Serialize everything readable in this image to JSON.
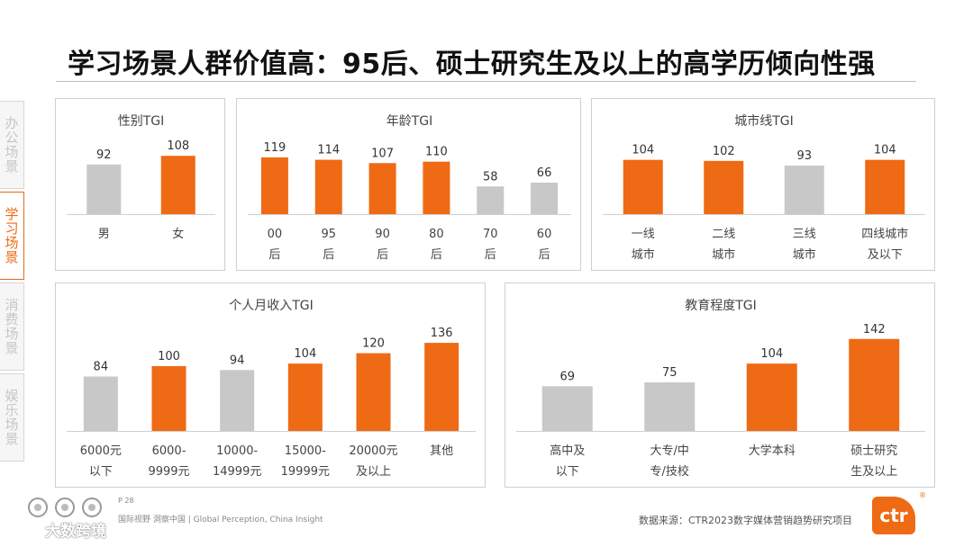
{
  "title": "学习场景人群价值高：95后、硕士研究生及以上的高学历倾向性强",
  "sidebar": [
    {
      "label": "办公场景",
      "active": false
    },
    {
      "label": "学习场景",
      "active": true
    },
    {
      "label": "消费场景",
      "active": false
    },
    {
      "label": "娱乐场景",
      "active": false
    }
  ],
  "colors": {
    "highlight": "#ef6a14",
    "base": "#c8c8c8"
  },
  "chart_data": [
    {
      "id": "gender",
      "type": "bar",
      "title": "性别TGI",
      "categories": [
        [
          "男"
        ],
        [
          "女"
        ]
      ],
      "values": [
        92,
        108
      ],
      "highlight": [
        false,
        true
      ]
    },
    {
      "id": "age",
      "type": "bar",
      "title": "年龄TGI",
      "categories": [
        [
          "00",
          "后"
        ],
        [
          "95",
          "后"
        ],
        [
          "90",
          "后"
        ],
        [
          "80",
          "后"
        ],
        [
          "70",
          "后"
        ],
        [
          "60",
          "后"
        ]
      ],
      "values": [
        119,
        114,
        107,
        110,
        58,
        66
      ],
      "highlight": [
        true,
        true,
        true,
        true,
        false,
        false
      ]
    },
    {
      "id": "city",
      "type": "bar",
      "title": "城市线TGI",
      "categories": [
        [
          "一线",
          "城市"
        ],
        [
          "二线",
          "城市"
        ],
        [
          "三线",
          "城市"
        ],
        [
          "四线城市",
          "及以下"
        ]
      ],
      "values": [
        104,
        102,
        93,
        104
      ],
      "highlight": [
        true,
        true,
        false,
        true
      ]
    },
    {
      "id": "income",
      "type": "bar",
      "title": "个人月收入TGI",
      "categories": [
        [
          "6000元",
          "以下"
        ],
        [
          "6000-",
          "9999元"
        ],
        [
          "10000-",
          "14999元"
        ],
        [
          "15000-",
          "19999元"
        ],
        [
          "20000元",
          "及以上"
        ],
        [
          "其他"
        ]
      ],
      "values": [
        84,
        100,
        94,
        104,
        120,
        136
      ],
      "highlight": [
        false,
        true,
        false,
        true,
        true,
        true
      ]
    },
    {
      "id": "education",
      "type": "bar",
      "title": "教育程度TGI",
      "categories": [
        [
          "高中及",
          "以下"
        ],
        [
          "大专/中",
          "专/技校"
        ],
        [
          "大学本科"
        ],
        [
          "硕士研究",
          "生及以上"
        ]
      ],
      "values": [
        69,
        75,
        104,
        142
      ],
      "highlight": [
        false,
        false,
        true,
        true
      ]
    }
  ],
  "footer": {
    "page": "P 28",
    "slogan": "国际视野  洞察中国 | Global Perception, China Insight",
    "source": "数据来源：CTR2023数字媒体营销趋势研究项目",
    "logo": "ctr",
    "reg": "®",
    "watermark": "大数跨境"
  }
}
